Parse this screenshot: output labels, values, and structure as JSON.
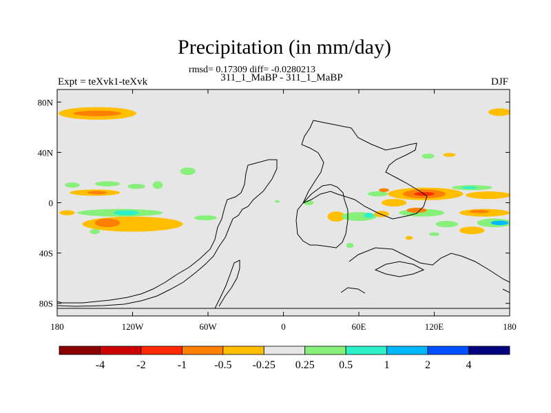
{
  "header": {
    "title": "Precipitation (in mm/day)",
    "stats": "rmsd= 0.17309 diff= -0.0280213",
    "expt_label": "Expt = teXvk1-teXvk",
    "runs_label": "311_1_MaBP - 311_1_MaBP",
    "season": "DJF"
  },
  "chart_data": {
    "type": "heatmap",
    "title": "Precipitation (in mm/day)",
    "x_ticks": [
      "180",
      "120W",
      "60W",
      "0",
      "60E",
      "120E",
      "180"
    ],
    "y_ticks": [
      "80N",
      "40N",
      "0",
      "40S",
      "80S"
    ],
    "xlim": [
      -180,
      180
    ],
    "ylim": [
      -90,
      90
    ],
    "background_color": "#e6e6e6",
    "colorbar": {
      "colors": [
        "#8b0000",
        "#cc0000",
        "#ff2a00",
        "#ff7f00",
        "#ffbf00",
        "#e6e6e6",
        "#86f07a",
        "#2ef0c8",
        "#00b8ff",
        "#0050ff",
        "#00007f"
      ],
      "labels": [
        "-4",
        "-2",
        "-1",
        "-0.5",
        "-0.25",
        "0.25",
        "0.5",
        "1",
        "2",
        "4"
      ]
    },
    "anomaly_regions": [
      {
        "lon": -148,
        "lat": 71,
        "rlon": 31,
        "rlat": 5,
        "level": "-0.25"
      },
      {
        "lon": -148,
        "lat": 71,
        "rlon": 19,
        "rlat": 2.2,
        "level": "-0.5"
      },
      {
        "lon": 172,
        "lat": 72,
        "rlon": 9,
        "rlat": 3,
        "level": "-0.25"
      },
      {
        "lon": -168,
        "lat": 14,
        "rlon": 6,
        "rlat": 2,
        "level": "0.25"
      },
      {
        "lon": -140,
        "lat": 15,
        "rlon": 10,
        "rlat": 2,
        "level": "0.25"
      },
      {
        "lon": -117,
        "lat": 13,
        "rlon": 7,
        "rlat": 2,
        "level": "0.25"
      },
      {
        "lon": -100,
        "lat": 14,
        "rlon": 4,
        "rlat": 3,
        "level": "0.25"
      },
      {
        "lon": -76,
        "lat": 25,
        "rlon": 6,
        "rlat": 3,
        "level": "0.25"
      },
      {
        "lon": -150,
        "lat": 8,
        "rlon": 20,
        "rlat": 2.5,
        "level": "-0.25"
      },
      {
        "lon": -148,
        "lat": 8,
        "rlon": 8,
        "rlat": 1.3,
        "level": "-0.5"
      },
      {
        "lon": -172,
        "lat": -8,
        "rlon": 6,
        "rlat": 2,
        "level": "-0.25"
      },
      {
        "lon": -130,
        "lat": -8,
        "rlon": 34,
        "rlat": 3,
        "level": "0.25"
      },
      {
        "lon": -125,
        "lat": -8,
        "rlon": 10,
        "rlat": 2,
        "level": "0.5"
      },
      {
        "lon": -120,
        "lat": -17,
        "rlon": 40,
        "rlat": 6,
        "level": "-0.25"
      },
      {
        "lon": -140,
        "lat": -16,
        "rlon": 10,
        "rlat": 3.5,
        "level": "-0.5"
      },
      {
        "lon": -150,
        "lat": -23,
        "rlon": 4,
        "rlat": 2,
        "level": "0.25"
      },
      {
        "lon": -62,
        "lat": -12,
        "rlon": 9,
        "rlat": 2,
        "level": "0.25"
      },
      {
        "lon": -5,
        "lat": 1,
        "rlon": 2,
        "rlat": 1,
        "level": "0.25"
      },
      {
        "lon": 20,
        "lat": 0,
        "rlon": 4,
        "rlat": 2,
        "level": "0.25"
      },
      {
        "lon": 42,
        "lat": -11,
        "rlon": 7,
        "rlat": 4,
        "level": "-0.25"
      },
      {
        "lon": 60,
        "lat": -11,
        "rlon": 14,
        "rlat": 3.5,
        "level": "0.25"
      },
      {
        "lon": 68,
        "lat": -10,
        "rlon": 4,
        "rlat": 2,
        "level": "0.5"
      },
      {
        "lon": 78,
        "lat": -9,
        "rlon": 6,
        "rlat": 2.5,
        "level": "-0.25"
      },
      {
        "lon": 88,
        "lat": 0,
        "rlon": 10,
        "rlat": 3,
        "level": "-0.25"
      },
      {
        "lon": 75,
        "lat": 7,
        "rlon": 8,
        "rlat": 2,
        "level": "0.25"
      },
      {
        "lon": 113,
        "lat": 7,
        "rlon": 30,
        "rlat": 5,
        "level": "-0.25"
      },
      {
        "lon": 112,
        "lat": 7,
        "rlon": 17,
        "rlat": 3.5,
        "level": "-0.5"
      },
      {
        "lon": 112,
        "lat": 7,
        "rlon": 8,
        "rlat": 1.5,
        "level": "-1"
      },
      {
        "lon": 163,
        "lat": 6,
        "rlon": 18,
        "rlat": 3,
        "level": "-0.25"
      },
      {
        "lon": 150,
        "lat": 12,
        "rlon": 16,
        "rlat": 2,
        "level": "0.25"
      },
      {
        "lon": 148,
        "lat": 12,
        "rlon": 6,
        "rlat": 1,
        "level": "0.5"
      },
      {
        "lon": 110,
        "lat": -8,
        "rlon": 18,
        "rlat": 3,
        "level": "0.25"
      },
      {
        "lon": 106,
        "lat": -6,
        "rlon": 8,
        "rlat": 2,
        "level": "-0.5"
      },
      {
        "lon": 160,
        "lat": -8,
        "rlon": 20,
        "rlat": 3,
        "level": "-0.25"
      },
      {
        "lon": 156,
        "lat": -7,
        "rlon": 8,
        "rlat": 1.3,
        "level": "-0.5"
      },
      {
        "lon": 168,
        "lat": -16,
        "rlon": 14,
        "rlat": 3.5,
        "level": "0.25"
      },
      {
        "lon": 172,
        "lat": -16,
        "rlon": 7,
        "rlat": 1.8,
        "level": "1"
      },
      {
        "lon": 150,
        "lat": -22,
        "rlon": 10,
        "rlat": 3,
        "level": "-0.25"
      },
      {
        "lon": 130,
        "lat": -17,
        "rlon": 9,
        "rlat": 2.5,
        "level": "0.25"
      },
      {
        "lon": 100,
        "lat": -28,
        "rlon": 3,
        "rlat": 1.5,
        "level": "-0.25"
      },
      {
        "lon": 120,
        "lat": -25,
        "rlon": 4,
        "rlat": 1.5,
        "level": "0.25"
      },
      {
        "lon": 53,
        "lat": -34,
        "rlon": 3,
        "rlat": 2,
        "level": "0.25"
      },
      {
        "lon": 115,
        "lat": 37,
        "rlon": 5,
        "rlat": 2,
        "level": "0.25"
      },
      {
        "lon": 132,
        "lat": 38,
        "rlon": 5,
        "rlat": 1.5,
        "level": "-0.25"
      },
      {
        "lon": 80,
        "lat": 10,
        "rlon": 4,
        "rlat": 1.5,
        "level": "-0.5"
      }
    ]
  }
}
